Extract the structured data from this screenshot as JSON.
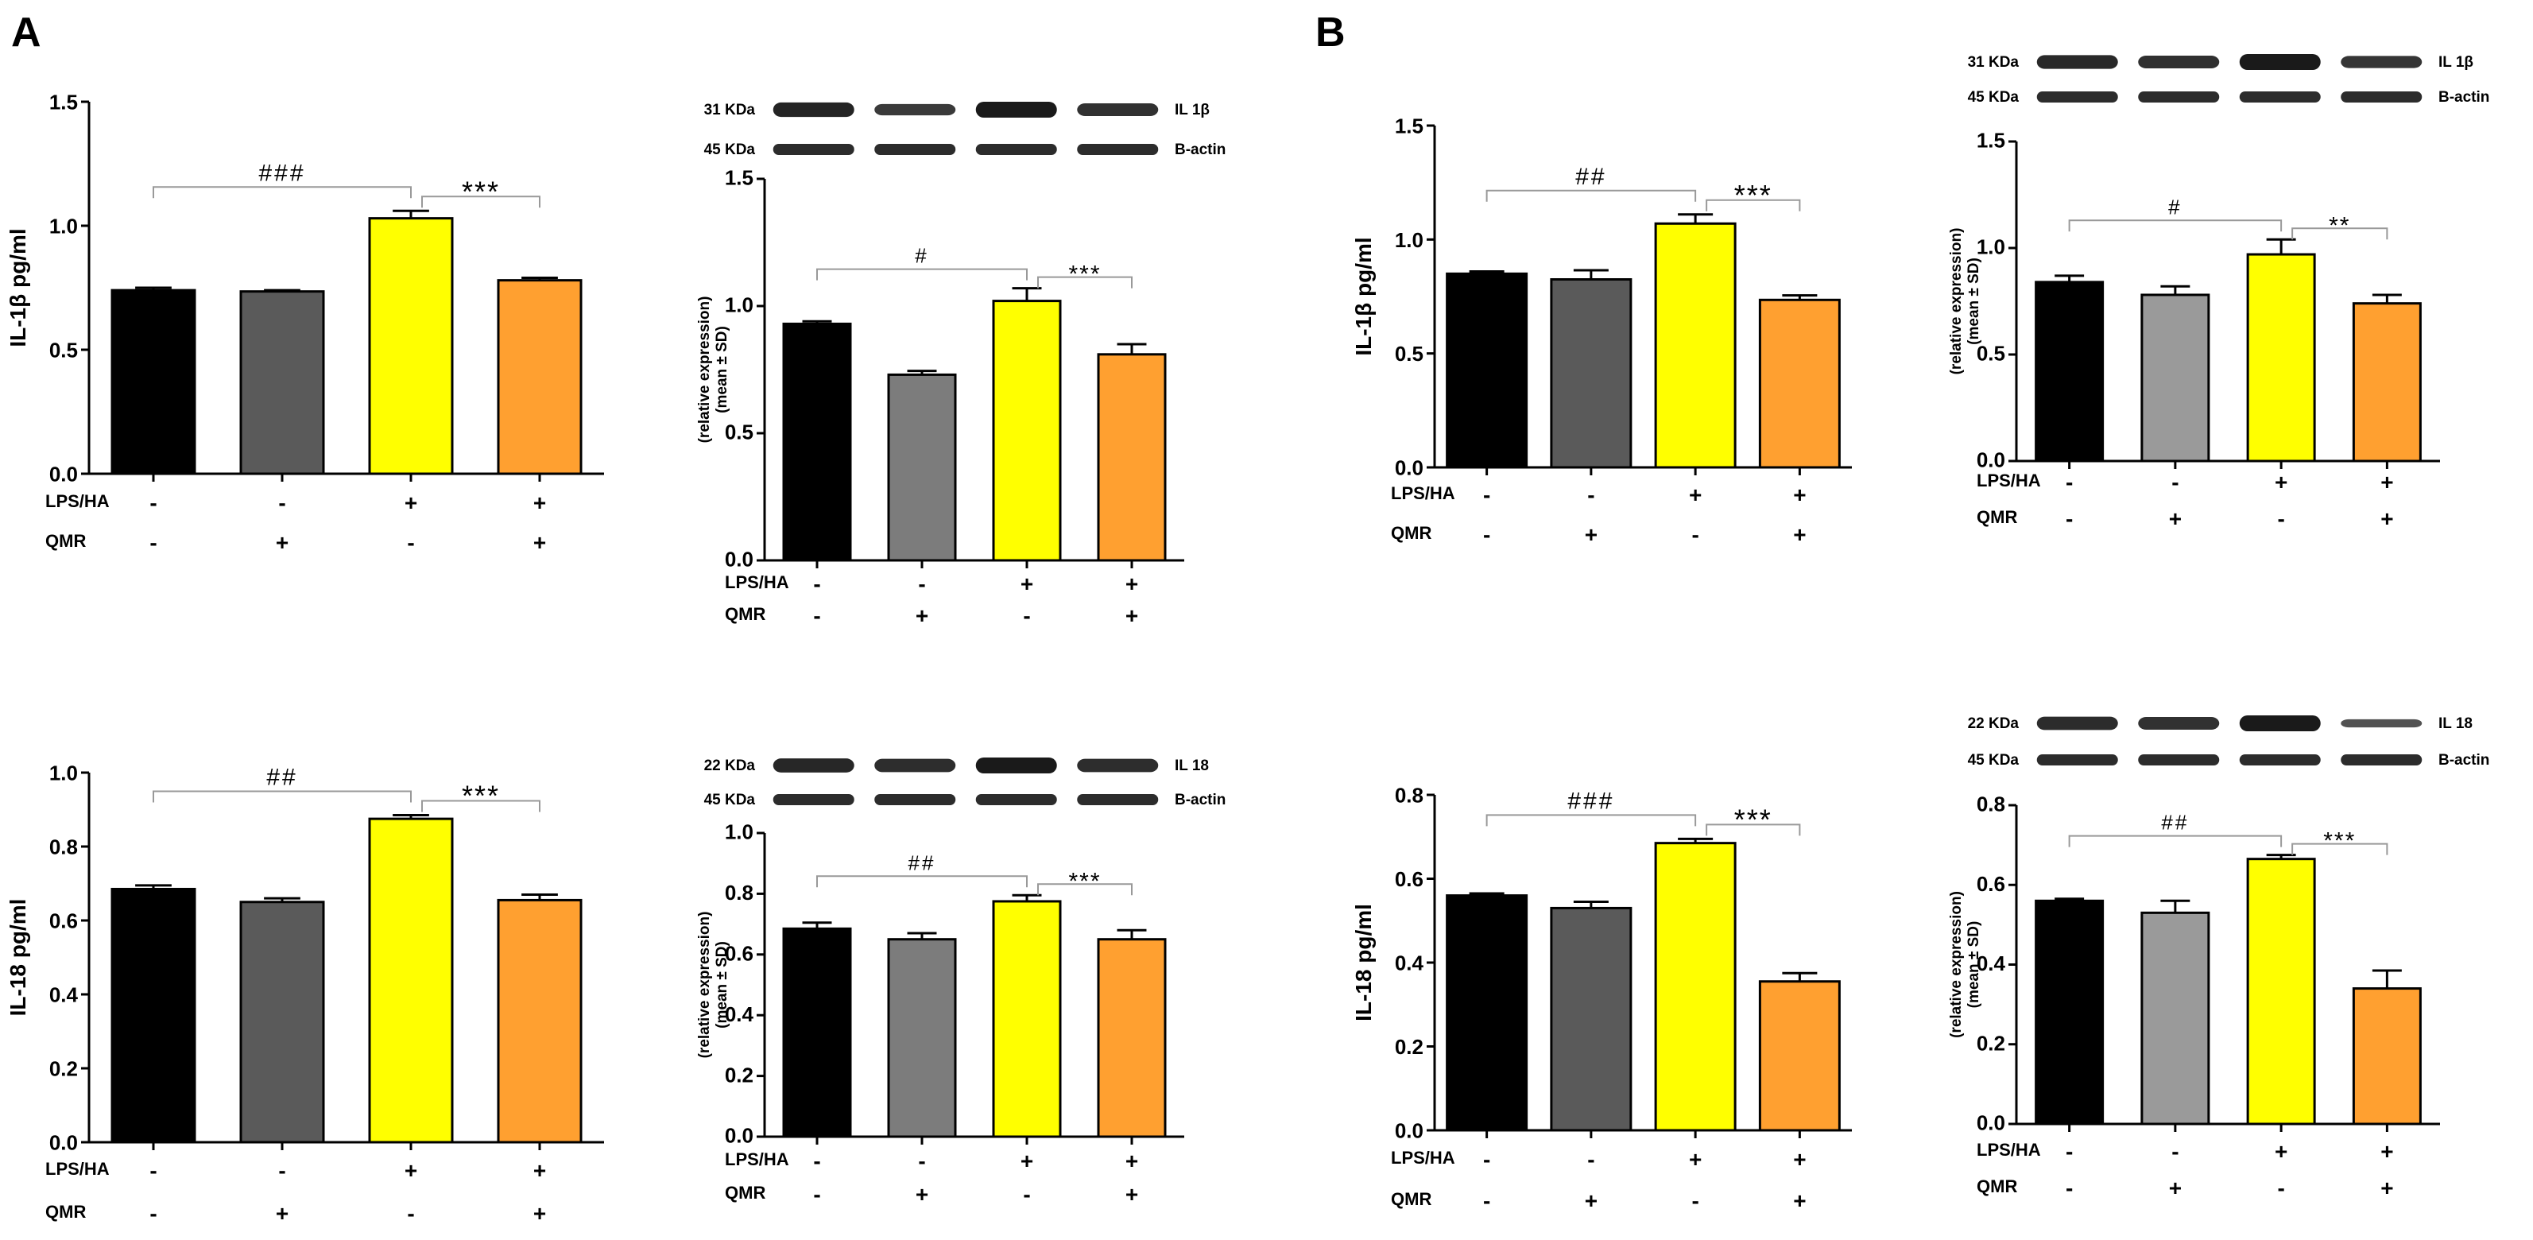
{
  "panel_labels": [
    "A",
    "B"
  ],
  "colors": {
    "control": "#000000",
    "qmr": "#5a5a5a",
    "qmr_light": "#8a8a8a",
    "lps": "#ffff00",
    "lps_qmr": "#ffa030",
    "bracket": "#999999",
    "band": "#1a1a1a"
  },
  "chart_data": [
    {
      "id": "A-il1b-elisa",
      "type": "bar",
      "panel": "A",
      "ylabel": "IL-1β pg/ml",
      "ylim": [
        0,
        1.5
      ],
      "yticks": [
        "0.0",
        "0.5",
        "1.0",
        "1.5"
      ],
      "values": [
        0.74,
        0.735,
        1.03,
        0.78
      ],
      "errors": [
        0.01,
        0.005,
        0.03,
        0.01
      ],
      "row_labels": [
        "LPS/HA",
        "QMR"
      ],
      "lps_signs": [
        "-",
        "-",
        "+",
        "+"
      ],
      "qmr_signs": [
        "-",
        "+",
        "-",
        "+"
      ],
      "sig_hash": "###",
      "sig_star": "***"
    },
    {
      "id": "A-il1b-wb",
      "type": "bar",
      "panel": "A",
      "ylabel": "(relative expression)",
      "ylabel2": "(mean ± SD)",
      "ylim": [
        0,
        1.5
      ],
      "yticks": [
        "0.0",
        "0.5",
        "1.0",
        "1.5"
      ],
      "values": [
        0.93,
        0.73,
        1.02,
        0.81
      ],
      "errors": [
        0.01,
        0.015,
        0.05,
        0.04
      ],
      "row_labels": [
        "LPS/HA",
        "QMR"
      ],
      "lps_signs": [
        "-",
        "-",
        "+",
        "+"
      ],
      "qmr_signs": [
        "-",
        "+",
        "-",
        "+"
      ],
      "sig_hash": "#",
      "sig_star": "***",
      "blot": {
        "top": "31 KDa",
        "top_name": "IL 1β",
        "bottom": "45 KDa",
        "bottom_name": "B-actin"
      }
    },
    {
      "id": "B-il1b-elisa",
      "type": "bar",
      "panel": "B",
      "ylabel": "IL-1β pg/ml",
      "ylim": [
        0,
        1.5
      ],
      "yticks": [
        "0.0",
        "0.5",
        "1.0",
        "1.5"
      ],
      "values": [
        0.85,
        0.825,
        1.07,
        0.735
      ],
      "errors": [
        0.01,
        0.04,
        0.04,
        0.02
      ],
      "row_labels": [
        "LPS/HA",
        "QMR"
      ],
      "lps_signs": [
        "-",
        "-",
        "+",
        "+"
      ],
      "qmr_signs": [
        "-",
        "+",
        "-",
        "+"
      ],
      "sig_hash": "##",
      "sig_star": "***"
    },
    {
      "id": "B-il1b-wb",
      "type": "bar",
      "panel": "B",
      "ylabel": "(relative expression)",
      "ylabel2": "(mean ± SD)",
      "ylim": [
        0,
        1.5
      ],
      "yticks": [
        "0.0",
        "0.5",
        "1.0",
        "1.5"
      ],
      "values": [
        0.84,
        0.78,
        0.97,
        0.74
      ],
      "errors": [
        0.03,
        0.04,
        0.07,
        0.04
      ],
      "row_labels": [
        "LPS/HA",
        "QMR"
      ],
      "lps_signs": [
        "-",
        "-",
        "+",
        "+"
      ],
      "qmr_signs": [
        "-",
        "+",
        "-",
        "+"
      ],
      "sig_hash": "#",
      "sig_star": "**",
      "blot": {
        "top": "31 KDa",
        "top_name": "IL 1β",
        "bottom": "45 KDa",
        "bottom_name": "B-actin"
      }
    },
    {
      "id": "A-il18-elisa",
      "type": "bar",
      "panel": "A",
      "ylabel": "IL-18 pg/ml",
      "ylim": [
        0,
        1.0
      ],
      "yticks": [
        "0.0",
        "0.2",
        "0.4",
        "0.6",
        "0.8",
        "1.0"
      ],
      "values": [
        0.685,
        0.65,
        0.875,
        0.655
      ],
      "errors": [
        0.01,
        0.01,
        0.01,
        0.015
      ],
      "row_labels": [
        "LPS/HA",
        "QMR"
      ],
      "lps_signs": [
        "-",
        "-",
        "+",
        "+"
      ],
      "qmr_signs": [
        "-",
        "+",
        "-",
        "+"
      ],
      "sig_hash": "##",
      "sig_star": "***"
    },
    {
      "id": "A-il18-wb",
      "type": "bar",
      "panel": "A",
      "ylabel": "(relative expression)",
      "ylabel2": "(mean ± SD)",
      "ylim": [
        0,
        1.0
      ],
      "yticks": [
        "0.0",
        "0.2",
        "0.4",
        "0.6",
        "0.8",
        "1.0"
      ],
      "values": [
        0.685,
        0.65,
        0.775,
        0.65
      ],
      "errors": [
        0.02,
        0.02,
        0.02,
        0.03
      ],
      "row_labels": [
        "LPS/HA",
        "QMR"
      ],
      "lps_signs": [
        "-",
        "-",
        "+",
        "+"
      ],
      "qmr_signs": [
        "-",
        "+",
        "-",
        "+"
      ],
      "sig_hash": "##",
      "sig_star": "***",
      "blot": {
        "top": "22 KDa",
        "top_name": "IL 18",
        "bottom": "45 KDa",
        "bottom_name": "B-actin"
      }
    },
    {
      "id": "B-il18-elisa",
      "type": "bar",
      "panel": "B",
      "ylabel": "IL-18 pg/ml",
      "ylim": [
        0,
        0.8
      ],
      "yticks": [
        "0.0",
        "0.2",
        "0.4",
        "0.6",
        "0.8"
      ],
      "values": [
        0.56,
        0.53,
        0.685,
        0.355
      ],
      "errors": [
        0.005,
        0.015,
        0.01,
        0.02
      ],
      "row_labels": [
        "LPS/HA",
        "QMR"
      ],
      "lps_signs": [
        "-",
        "-",
        "+",
        "+"
      ],
      "qmr_signs": [
        "-",
        "+",
        "-",
        "+"
      ],
      "sig_hash": "###",
      "sig_star": "***"
    },
    {
      "id": "B-il18-wb",
      "type": "bar",
      "panel": "B",
      "ylabel": "(relative expression)",
      "ylabel2": "(mean ± SD)",
      "ylim": [
        0,
        0.8
      ],
      "yticks": [
        "0.0",
        "0.2",
        "0.4",
        "0.6",
        "0.8"
      ],
      "values": [
        0.56,
        0.53,
        0.665,
        0.34
      ],
      "errors": [
        0.005,
        0.03,
        0.01,
        0.045
      ],
      "row_labels": [
        "LPS/HA",
        "QMR"
      ],
      "lps_signs": [
        "-",
        "-",
        "+",
        "+"
      ],
      "qmr_signs": [
        "-",
        "+",
        "-",
        "+"
      ],
      "sig_hash": "##",
      "sig_star": "***",
      "blot": {
        "top": "22 KDa",
        "top_name": "IL 18",
        "bottom": "45 KDa",
        "bottom_name": "B-actin"
      }
    }
  ]
}
